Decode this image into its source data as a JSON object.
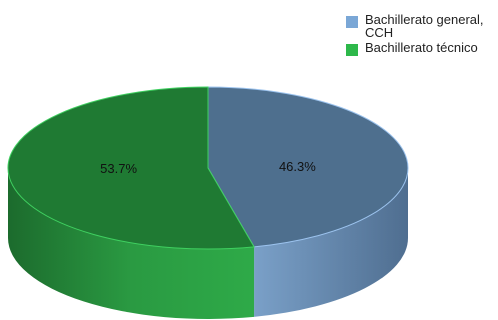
{
  "chart_data": {
    "type": "pie",
    "style": "3d",
    "categories": [
      "Bachillerato general, CCH",
      "Bachillerato técnico"
    ],
    "values": [
      46.3,
      53.7
    ],
    "labels": [
      "46.3%",
      "53.7%"
    ],
    "legend_position": "top-right",
    "colors": {
      "slice_general_top": "#4e6f8e",
      "slice_general_side": "#6f90b6",
      "slice_tecnico_top": "#1f7a33",
      "slice_tecnico_side": "#2aa044",
      "legend_general": "#7aa7d6",
      "legend_tecnico": "#2db84a"
    }
  },
  "legend": {
    "items": [
      {
        "label": "Bachillerato general, CCH",
        "color": "#7aa7d6"
      },
      {
        "label": "Bachillerato técnico",
        "color": "#2db84a"
      }
    ]
  }
}
